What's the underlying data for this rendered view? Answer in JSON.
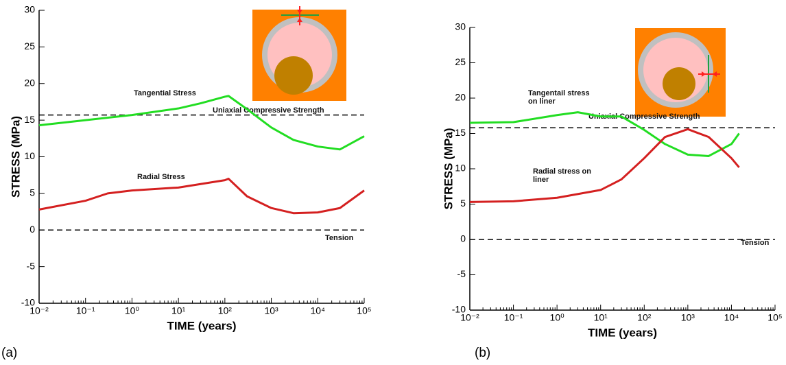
{
  "chart_data": [
    {
      "type": "line",
      "panel_label": "(a)",
      "xlabel": "TIME (years)",
      "ylabel": "STRESS (MPa)",
      "xscale": "log",
      "xlim": [
        0.01,
        100000
      ],
      "ylim": [
        -10,
        30
      ],
      "xticks": [
        {
          "value": 0.01,
          "label": "10⁻²"
        },
        {
          "value": 0.1,
          "label": "10⁻¹"
        },
        {
          "value": 1,
          "label": "10⁰"
        },
        {
          "value": 10,
          "label": "10¹"
        },
        {
          "value": 100,
          "label": "10²"
        },
        {
          "value": 1000,
          "label": "10³"
        },
        {
          "value": 10000,
          "label": "10⁴"
        },
        {
          "value": 100000,
          "label": "10⁵"
        }
      ],
      "yticks": [
        -10,
        -5,
        0,
        5,
        10,
        15,
        20,
        25,
        30
      ],
      "series": [
        {
          "name": "Tangential Stress",
          "color": "#22dd22",
          "x": [
            0.01,
            0.1,
            1,
            10,
            30,
            100,
            120,
            300,
            1000,
            3000,
            10000,
            30000,
            100000
          ],
          "values": [
            14.3,
            15.0,
            15.7,
            16.6,
            17.3,
            18.2,
            18.3,
            16.5,
            14.0,
            12.3,
            11.4,
            11.0,
            12.8
          ]
        },
        {
          "name": "Radial Stress",
          "color": "#d42020",
          "x": [
            0.01,
            0.1,
            0.3,
            1,
            10,
            100,
            120,
            300,
            1000,
            3000,
            10000,
            30000,
            100000
          ],
          "values": [
            2.8,
            4.0,
            5.0,
            5.4,
            5.8,
            6.8,
            7.0,
            4.6,
            3.0,
            2.3,
            2.4,
            3.0,
            5.4
          ]
        }
      ],
      "reference_lines": [
        {
          "label": "Uniaxial Compressive Strength",
          "value": 15.7
        },
        {
          "label": "Tension",
          "value": 0
        }
      ]
    },
    {
      "type": "line",
      "panel_label": "(b)",
      "xlabel": "TIME (years)",
      "ylabel": "STRESS (MPa)",
      "xscale": "log",
      "xlim": [
        0.01,
        100000
      ],
      "ylim": [
        -10,
        30
      ],
      "xticks": [
        {
          "value": 0.01,
          "label": "10⁻²"
        },
        {
          "value": 0.1,
          "label": "10⁻¹"
        },
        {
          "value": 1,
          "label": "10⁰"
        },
        {
          "value": 10,
          "label": "10¹"
        },
        {
          "value": 100,
          "label": "10²"
        },
        {
          "value": 1000,
          "label": "10³"
        },
        {
          "value": 10000,
          "label": "10⁴"
        },
        {
          "value": 100000,
          "label": "10⁵"
        }
      ],
      "yticks": [
        -10,
        -5,
        0,
        5,
        10,
        15,
        20,
        25,
        30
      ],
      "series": [
        {
          "name": "Tangentail stress on liner",
          "color": "#22dd22",
          "x": [
            0.01,
            0.1,
            1,
            3,
            10,
            30,
            100,
            300,
            1000,
            3000,
            10000,
            15000
          ],
          "values": [
            16.5,
            16.6,
            17.6,
            18.0,
            17.4,
            17.4,
            15.5,
            13.5,
            12.0,
            11.8,
            13.5,
            15.0
          ]
        },
        {
          "name": "Radial stress on liner",
          "color": "#d42020",
          "x": [
            0.01,
            0.1,
            1,
            10,
            30,
            100,
            300,
            1000,
            3000,
            10000,
            15000
          ],
          "values": [
            5.3,
            5.4,
            5.9,
            7.0,
            8.5,
            11.5,
            14.5,
            15.6,
            14.5,
            11.5,
            10.2
          ]
        }
      ],
      "reference_lines": [
        {
          "label": "Uniaxial Compressive Strength",
          "value": 15.8
        },
        {
          "label": "Tension",
          "value": 0
        }
      ]
    }
  ]
}
